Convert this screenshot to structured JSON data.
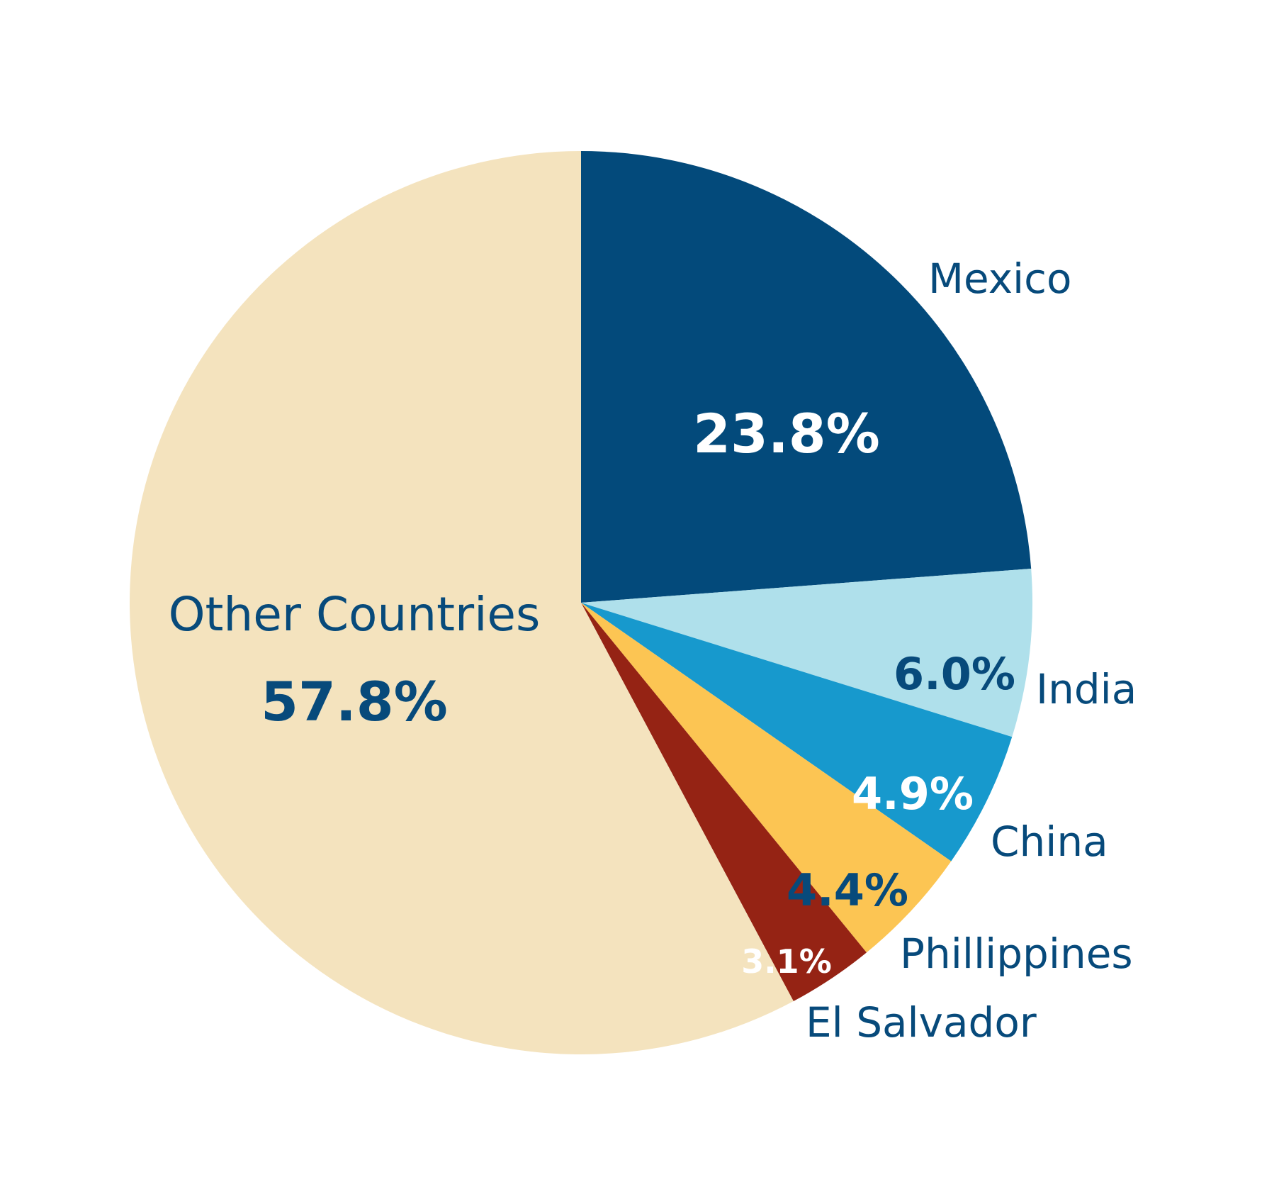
{
  "chart_data": {
    "type": "pie",
    "start": "12 o'clock",
    "direction": "clockwise",
    "slices": [
      {
        "label": "Mexico",
        "value": 23.8,
        "value_label": "23.8%",
        "color": "#034a7b"
      },
      {
        "label": "India",
        "value": 6.0,
        "value_label": "6.0%",
        "color": "#afe0eb"
      },
      {
        "label": "China",
        "value": 4.9,
        "value_label": "4.9%",
        "color": "#1799cd"
      },
      {
        "label": "Phillippines",
        "value": 4.4,
        "value_label": "4.4%",
        "color": "#fcc553"
      },
      {
        "label": "El Salvador",
        "value": 3.1,
        "value_label": "3.1%",
        "color": "#952314"
      },
      {
        "label": "Other Countries",
        "value": 57.8,
        "value_label": "57.8%",
        "color": "#f4e3be"
      }
    ]
  }
}
